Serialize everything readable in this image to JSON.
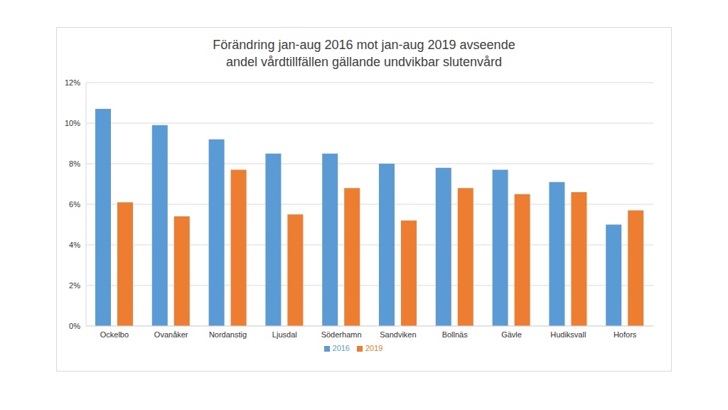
{
  "chart_data": {
    "type": "bar",
    "title": "Förändring jan-aug 2016 mot jan-aug 2019 avseende andel vårdtillfällen gällande undvikbar slutenvård",
    "categories": [
      "Ockelbo",
      "Ovanåker",
      "Nordanstig",
      "Ljusdal",
      "Söderhamn",
      "Sandviken",
      "Bollnäs",
      "Gävle",
      "Hudiksvall",
      "Hofors"
    ],
    "series": [
      {
        "name": "2016",
        "color": "#5b9bd5",
        "values": [
          10.7,
          9.9,
          9.2,
          8.5,
          8.5,
          8.0,
          7.8,
          7.7,
          7.1,
          5.0
        ]
      },
      {
        "name": "2019",
        "color": "#ed7d31",
        "values": [
          6.1,
          5.4,
          7.7,
          5.5,
          6.8,
          5.2,
          6.8,
          6.5,
          6.6,
          5.7
        ]
      }
    ],
    "ylim": [
      0,
      12
    ],
    "yticks": [
      {
        "value": 0,
        "label": "0%"
      },
      {
        "value": 2,
        "label": "2%"
      },
      {
        "value": 4,
        "label": "4%"
      },
      {
        "value": 6,
        "label": "6%"
      },
      {
        "value": 8,
        "label": "8%"
      },
      {
        "value": 10,
        "label": "10%"
      },
      {
        "value": 12,
        "label": "12%"
      }
    ],
    "grid": true,
    "legend": "bottom"
  }
}
